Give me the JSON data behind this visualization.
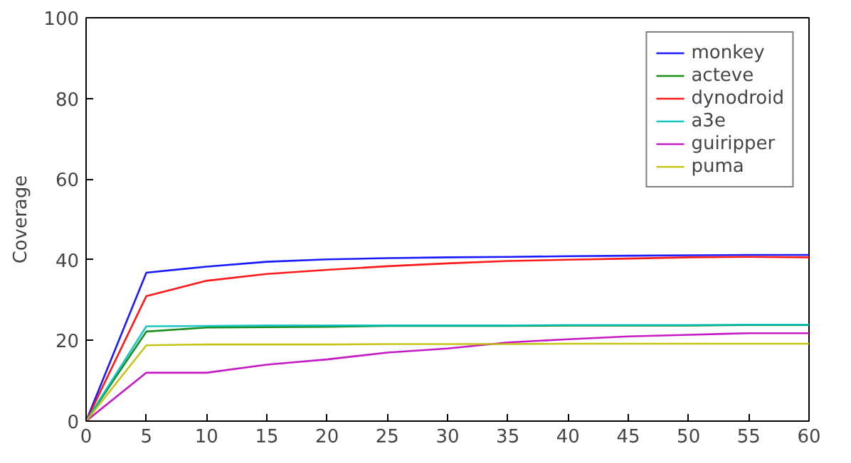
{
  "chart_data": {
    "type": "line",
    "ylabel": "Coverage",
    "x": [
      0,
      5,
      10,
      15,
      20,
      25,
      30,
      35,
      40,
      45,
      50,
      55,
      60
    ],
    "xlim": [
      0,
      60
    ],
    "xticks": [
      0,
      5,
      10,
      15,
      20,
      25,
      30,
      35,
      40,
      45,
      50,
      55,
      60
    ],
    "ylim": [
      0,
      100
    ],
    "yticks": [
      0,
      20,
      40,
      60,
      80,
      100
    ],
    "grid": false,
    "legend": "top right",
    "marker": "none",
    "line_style": "solid",
    "series": [
      {
        "name": "monkey",
        "color": "#0000ff",
        "values": [
          0,
          36.8,
          38.3,
          39.5,
          40.1,
          40.4,
          40.6,
          40.7,
          40.9,
          41.0,
          41.1,
          41.2,
          41.2
        ]
      },
      {
        "name": "acteve",
        "color": "#008000",
        "values": [
          0,
          22.2,
          23.2,
          23.3,
          23.4,
          23.6,
          23.6,
          23.6,
          23.7,
          23.7,
          23.7,
          23.8,
          23.8
        ]
      },
      {
        "name": "dynodroid",
        "color": "#ff0000",
        "values": [
          0,
          31,
          34.8,
          36.5,
          37.5,
          38.4,
          39.1,
          39.7,
          40.0,
          40.3,
          40.6,
          40.7,
          40.6
        ]
      },
      {
        "name": "a3e",
        "color": "#00bfbf",
        "values": [
          0,
          23.5,
          23.6,
          23.7,
          23.7,
          23.7,
          23.7,
          23.7,
          23.8,
          23.8,
          23.8,
          23.9,
          23.9
        ]
      },
      {
        "name": "guiripper",
        "color": "#bf00bf",
        "values": [
          0,
          12,
          12,
          14,
          15.3,
          17,
          18,
          19.5,
          20.3,
          21,
          21.4,
          21.8,
          21.8
        ]
      },
      {
        "name": "puma",
        "color": "#bfbf00",
        "values": [
          0,
          18.8,
          19,
          19,
          19,
          19.1,
          19.1,
          19.1,
          19.2,
          19.2,
          19.2,
          19.2,
          19.2
        ]
      }
    ]
  }
}
